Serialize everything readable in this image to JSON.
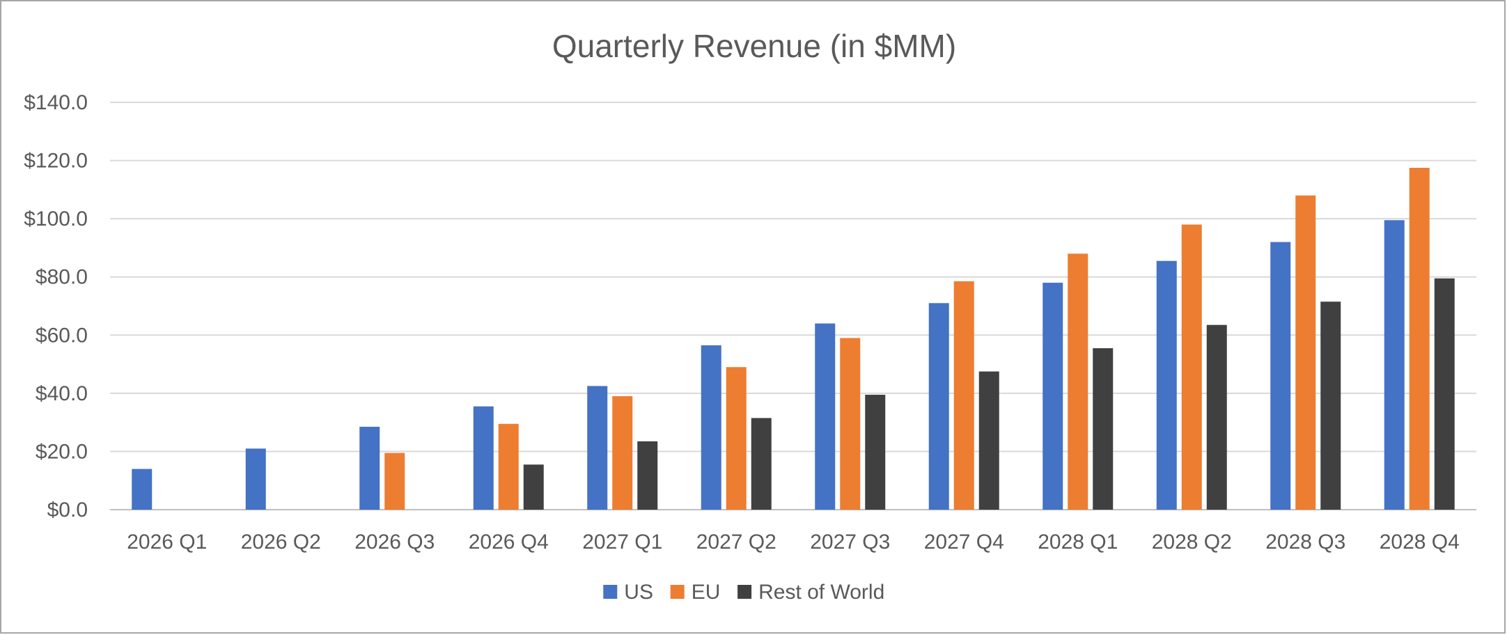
{
  "chart_data": {
    "type": "bar",
    "title": "Quarterly Revenue (in $MM)",
    "xlabel": "",
    "ylabel": "",
    "categories": [
      "2026 Q1",
      "2026 Q2",
      "2026 Q3",
      "2026 Q4",
      "2027 Q1",
      "2027 Q2",
      "2027 Q3",
      "2027 Q4",
      "2028 Q1",
      "2028 Q2",
      "2028 Q3",
      "2028 Q4"
    ],
    "ylim": [
      0,
      140
    ],
    "yticks": [
      "$0.0",
      "$20.0",
      "$40.0",
      "$60.0",
      "$80.0",
      "$100.0",
      "$120.0",
      "$140.0"
    ],
    "grid": true,
    "legend_position": "bottom",
    "series": [
      {
        "name": "US",
        "color": "#4472C4",
        "values": [
          14,
          21,
          28.5,
          35.5,
          42.5,
          56.5,
          64,
          71,
          78,
          85.5,
          92,
          99.5
        ]
      },
      {
        "name": "EU",
        "color": "#ED7D31",
        "values": [
          0,
          0,
          19.5,
          29.5,
          39,
          49,
          59,
          78.5,
          88,
          98,
          108,
          117.5
        ]
      },
      {
        "name": "Rest of World",
        "color": "#404040",
        "values": [
          0,
          0,
          0,
          15.5,
          23.5,
          31.5,
          39.5,
          47.5,
          55.5,
          63.5,
          71.5,
          79.5
        ]
      }
    ]
  }
}
